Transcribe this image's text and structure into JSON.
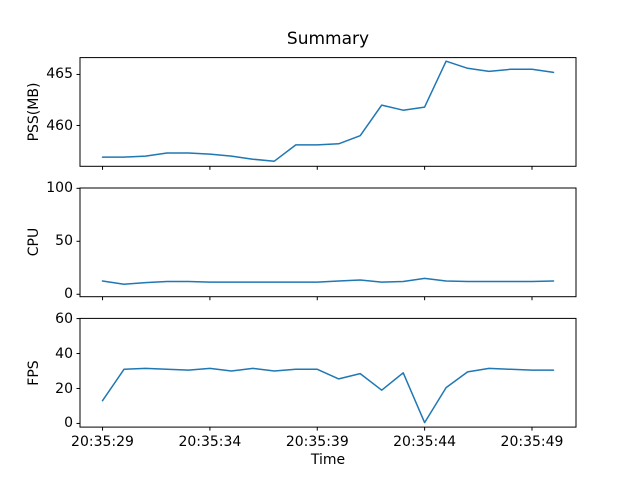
{
  "figure": {
    "title": "Summary",
    "xlabel": "Time",
    "background_color": "#ffffff",
    "text_color": "#000000"
  },
  "chart_data": {
    "type": "line",
    "title": "Summary",
    "xlabel": "Time",
    "grid": false,
    "legend": "none",
    "line_color": "#1f77b4",
    "axis_color": "#000000",
    "x_seconds": [
      29,
      30,
      31,
      32,
      33,
      34,
      35,
      36,
      37,
      38,
      39,
      40,
      41,
      42,
      43,
      44,
      45,
      46,
      47,
      48,
      49,
      50
    ],
    "x_tick_seconds": [
      29,
      34,
      39,
      44,
      49
    ],
    "x_tick_labels": [
      "20:35:29",
      "20:35:34",
      "20:35:39",
      "20:35:44",
      "20:35:49"
    ],
    "xlim": [
      27.95,
      51.05
    ],
    "subplots": [
      {
        "ylabel": "PSS(MB)",
        "values": [
          456.9,
          456.9,
          457.0,
          457.3,
          457.3,
          457.2,
          457.0,
          456.7,
          456.5,
          458.1,
          458.1,
          458.2,
          459.0,
          462.0,
          461.5,
          461.8,
          466.3,
          465.6,
          465.3,
          465.5,
          465.5,
          465.2
        ],
        "yticks": [
          460,
          465
        ],
        "ylim": [
          456.0,
          466.65
        ]
      },
      {
        "ylabel": "CPU",
        "values": [
          12.5,
          9.5,
          11,
          12,
          12,
          11.5,
          11.5,
          11.5,
          11.5,
          11.5,
          11.5,
          12.5,
          13.5,
          11.5,
          12,
          15,
          12.5,
          12,
          12,
          12,
          12,
          12.5
        ],
        "yticks": [
          0,
          50,
          100
        ],
        "ylim": [
          -2.3,
          100.3
        ]
      },
      {
        "ylabel": "FPS",
        "values": [
          13,
          31,
          31.5,
          31,
          30.5,
          31.5,
          30,
          31.5,
          30,
          31,
          31,
          25.5,
          28.5,
          19,
          29,
          0.5,
          20.5,
          29.5,
          31.5,
          31,
          30.5,
          30.5
        ],
        "yticks": [
          0,
          20,
          40,
          60
        ],
        "ylim": [
          -2.1,
          60.1
        ]
      }
    ]
  }
}
